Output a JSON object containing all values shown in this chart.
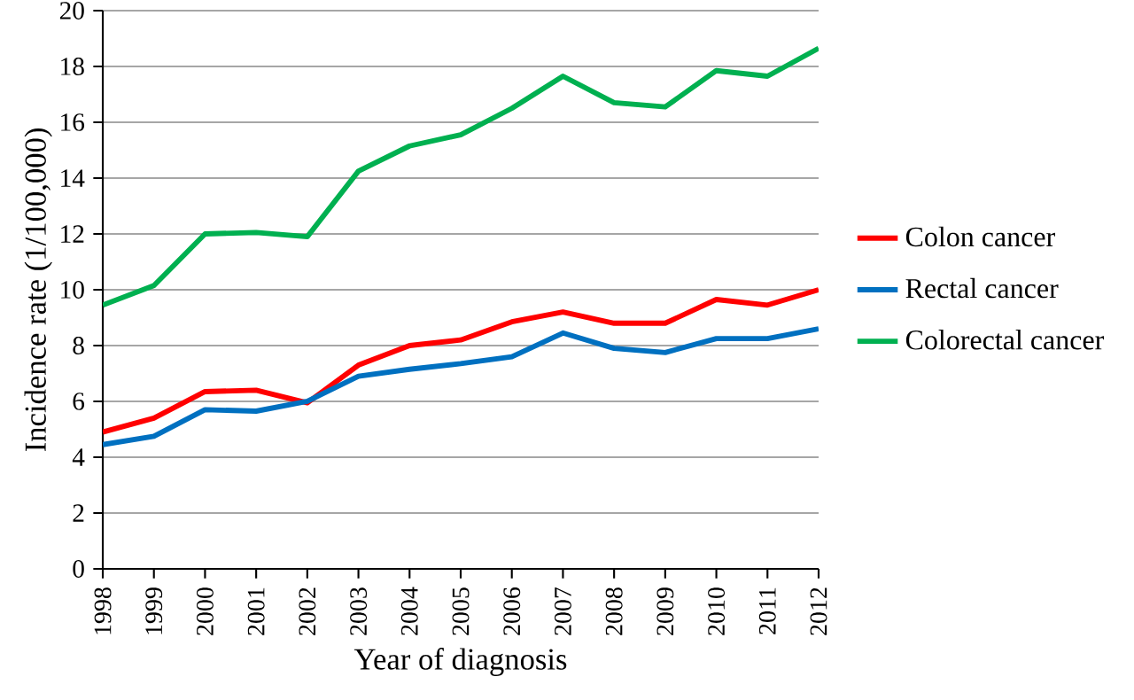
{
  "chart_data": {
    "type": "line",
    "xlabel": "Year of diagnosis",
    "ylabel": "Incidence rate (1/100,000)",
    "categories": [
      "1998",
      "1999",
      "2000",
      "2001",
      "2002",
      "2003",
      "2004",
      "2005",
      "2006",
      "2007",
      "2008",
      "2009",
      "2010",
      "2011",
      "2012"
    ],
    "series": [
      {
        "name": "Colon cancer",
        "color": "#ff0000",
        "values": [
          4.9,
          5.4,
          6.35,
          6.4,
          5.95,
          7.3,
          8.0,
          8.2,
          8.85,
          9.2,
          8.8,
          8.8,
          9.65,
          9.45,
          10.0
        ]
      },
      {
        "name": "Rectal cancer",
        "color": "#0070c0",
        "values": [
          4.45,
          4.75,
          5.7,
          5.65,
          6.0,
          6.9,
          7.15,
          7.35,
          7.6,
          8.45,
          7.9,
          7.75,
          8.25,
          8.25,
          8.6
        ]
      },
      {
        "name": "Colorectal cancer",
        "color": "#00b050",
        "values": [
          9.45,
          10.15,
          12.0,
          12.05,
          11.9,
          14.25,
          15.15,
          15.55,
          16.5,
          17.65,
          16.7,
          16.55,
          17.85,
          17.65,
          18.65
        ]
      }
    ],
    "ylim": [
      0,
      20
    ],
    "yticks": [
      0,
      2,
      4,
      6,
      8,
      10,
      12,
      14,
      16,
      18,
      20
    ],
    "grid": "y",
    "legend": "right",
    "marker": "none",
    "line_style": "solid"
  }
}
